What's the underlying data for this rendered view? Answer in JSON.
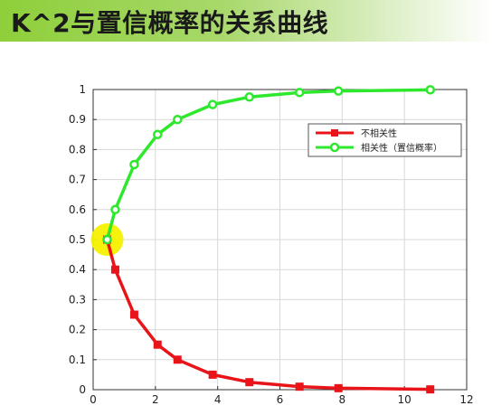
{
  "header": {
    "title": "K^2与置信概率的关系曲线"
  },
  "chart_data": {
    "type": "line",
    "xlim": [
      0,
      12
    ],
    "ylim": [
      0,
      1
    ],
    "x_ticks": [
      "0",
      "2",
      "4",
      "6",
      "8",
      "10",
      "12"
    ],
    "y_ticks": [
      "0",
      "0.1",
      "0.2",
      "0.3",
      "0.4",
      "0.5",
      "0.6",
      "0.7",
      "0.8",
      "0.9",
      "1"
    ],
    "grid": true,
    "legend_position": "top-right",
    "series": [
      {
        "name": "不相关性",
        "color": "#e8141a",
        "marker": "square",
        "x": [
          0.45,
          0.71,
          1.32,
          2.07,
          2.71,
          3.84,
          5.02,
          6.63,
          7.88,
          10.83
        ],
        "y": [
          0.5,
          0.4,
          0.25,
          0.15,
          0.1,
          0.05,
          0.025,
          0.01,
          0.005,
          0.001
        ]
      },
      {
        "name": "相关性（置信概率）",
        "color": "#2ee82e",
        "marker": "circle",
        "x": [
          0.45,
          0.71,
          1.32,
          2.07,
          2.71,
          3.84,
          5.02,
          6.63,
          7.88,
          10.83
        ],
        "y": [
          0.5,
          0.6,
          0.75,
          0.85,
          0.9,
          0.95,
          0.975,
          0.99,
          0.995,
          0.999
        ]
      }
    ],
    "highlight": {
      "x": 0.45,
      "y": 0.5,
      "color": "#f5f000"
    }
  }
}
